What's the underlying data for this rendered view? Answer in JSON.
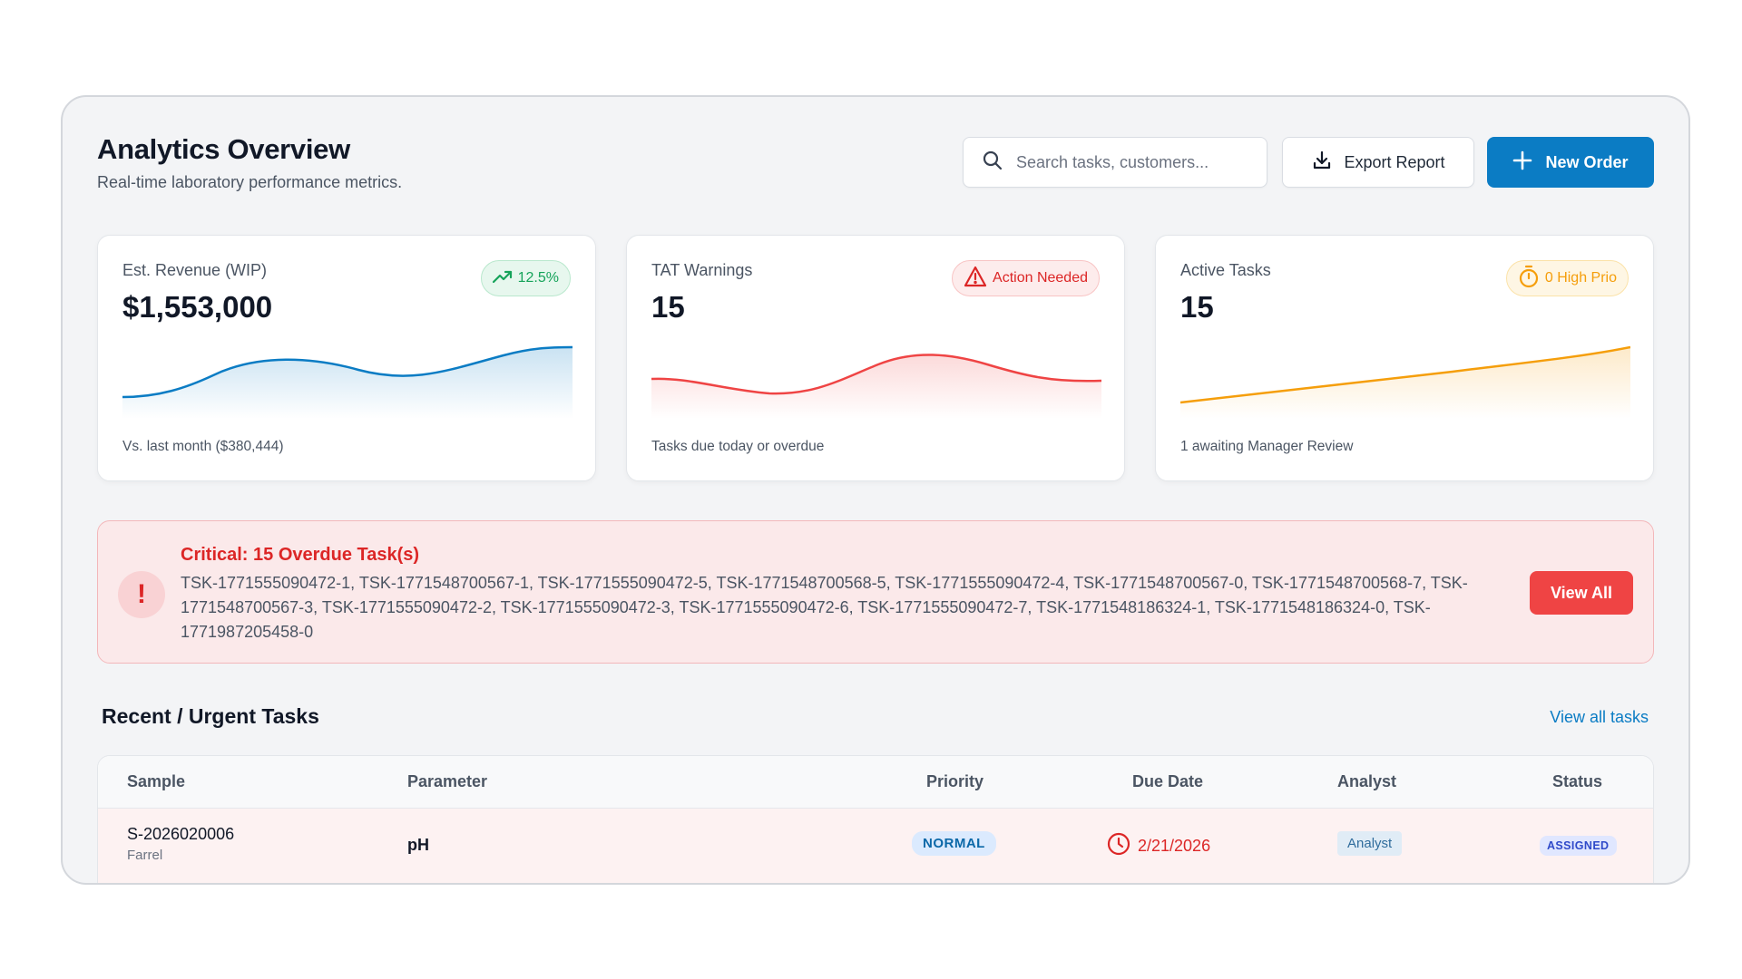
{
  "header": {
    "title": "Analytics Overview",
    "subtitle": "Real-time laboratory performance metrics.",
    "search_placeholder": "Search tasks, customers...",
    "export_label": "Export Report",
    "new_order_label": "New Order"
  },
  "cards": [
    {
      "label": "Est. Revenue (WIP)",
      "value": "$1,553,000",
      "badge": "12.5%",
      "footer": "Vs. last month ($380,444)",
      "color": "#0b7cc4"
    },
    {
      "label": "TAT Warnings",
      "value": "15",
      "badge": "Action Needed",
      "footer": "Tasks due today or overdue",
      "color": "#ef4444"
    },
    {
      "label": "Active Tasks",
      "value": "15",
      "badge": "0 High Prio",
      "footer": "1 awaiting Manager Review",
      "color": "#f59e0b"
    }
  ],
  "alert": {
    "title": "Critical: 15 Overdue Task(s)",
    "body": "TSK-1771555090472-1, TSK-1771548700567-1, TSK-1771555090472-5, TSK-1771548700568-5, TSK-1771555090472-4, TSK-1771548700567-0, TSK-1771548700568-7, TSK-1771548700567-3, TSK-1771555090472-2, TSK-1771555090472-3, TSK-1771555090472-6, TSK-1771555090472-7, TSK-1771548186324-1, TSK-1771548186324-0, TSK-1771987205458-0",
    "button_label": "View All",
    "icon_glyph": "!"
  },
  "tasks": {
    "title": "Recent / Urgent Tasks",
    "view_all_label": "View all tasks",
    "columns": [
      "Sample",
      "Parameter",
      "Priority",
      "Due Date",
      "Analyst",
      "Status"
    ],
    "rows": [
      {
        "sample": "S-2026020006",
        "customer": "Farrel",
        "parameter": "pH",
        "priority": "NORMAL",
        "due_date": "2/21/2026",
        "analyst": "Analyst",
        "status": "ASSIGNED"
      }
    ]
  },
  "colors": {
    "accent": "#0b7cc4",
    "danger": "#ef4444",
    "warning": "#f59e0b",
    "success": "#16a35a"
  }
}
